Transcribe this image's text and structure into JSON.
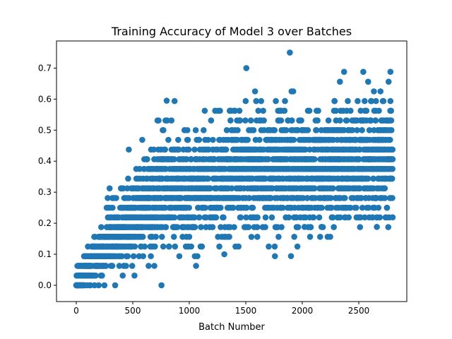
{
  "chart_data": {
    "type": "scatter",
    "title": "Training Accuracy of Model 3 over Batches",
    "xlabel": "Batch Number",
    "ylabel": "",
    "xlim": [
      -175,
      2925
    ],
    "ylim": [
      -0.0525,
      0.7875
    ],
    "x_ticks": [
      0,
      500,
      1000,
      1500,
      2000,
      2500
    ],
    "y_ticks": [
      0.0,
      0.1,
      0.2,
      0.3,
      0.4,
      0.5,
      0.6,
      0.7
    ],
    "x_tick_labels": [
      "0",
      "500",
      "1000",
      "1500",
      "2000",
      "2500"
    ],
    "y_tick_labels": [
      "0.0",
      "0.1",
      "0.2",
      "0.3",
      "0.4",
      "0.5",
      "0.6",
      "0.7"
    ],
    "grid": false,
    "marker_color": "#1f77b4",
    "batch_count": 2800,
    "accuracy_step": 0.03125,
    "outliers": [
      {
        "x": 1890,
        "y": 0.75
      },
      {
        "x": 1505,
        "y": 0.7
      },
      {
        "x": 1310,
        "y": 0.1
      },
      {
        "x": 1900,
        "y": 0.094
      },
      {
        "x": 800,
        "y": 0.595
      },
      {
        "x": 1550,
        "y": 0.156
      },
      {
        "x": 2020,
        "y": 0.188
      },
      {
        "x": 2170,
        "y": 0.188
      },
      {
        "x": 2660,
        "y": 0.188
      },
      {
        "x": 2800,
        "y": 0.219
      },
      {
        "x": 640,
        "y": 0.0625
      },
      {
        "x": 1100,
        "y": 0.125
      },
      {
        "x": 2370,
        "y": 0.688
      },
      {
        "x": 2540,
        "y": 0.688
      },
      {
        "x": 2780,
        "y": 0.688
      }
    ]
  }
}
